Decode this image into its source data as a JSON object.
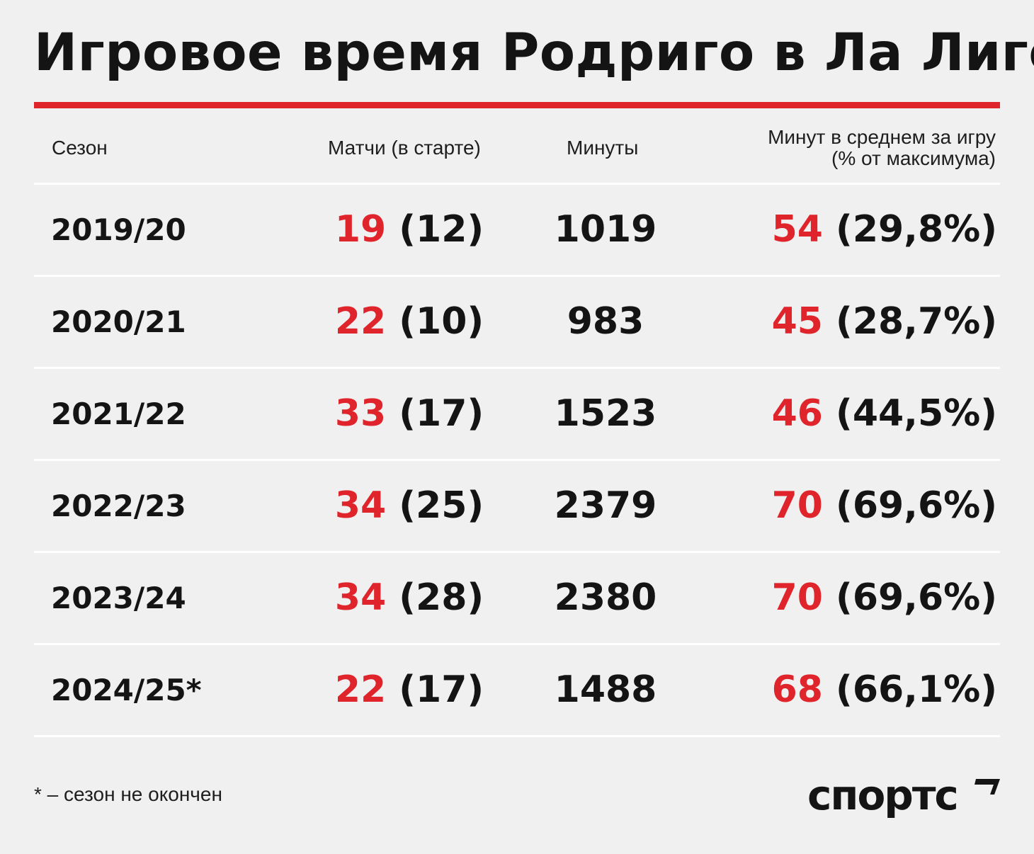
{
  "title": "Игровое время Родриго в Ла Лиге",
  "colors": {
    "accent": "#e0242b",
    "text": "#141414",
    "background": "#f0f0f0"
  },
  "headers": {
    "season": "Сезон",
    "matches": "Матчи (в старте)",
    "minutes": "Минуты",
    "avg_line1": "Минут в среднем за игру",
    "avg_line2": "(% от максимума)"
  },
  "footnote": "* – сезон не окончен",
  "logo": {
    "text": "спортс",
    "icon": "sports-ru-logo-mark"
  },
  "chart_data": {
    "type": "table",
    "title": "Игровое время Родриго в Ла Лиге",
    "columns": [
      "Сезон",
      "Матчи (в старте)",
      "Минуты",
      "Минут в среднем за игру (% от максимума)"
    ],
    "rows": [
      {
        "season": "2019/20",
        "matches": "19",
        "starts": "(12)",
        "minutes": "1019",
        "avg": "54",
        "pct": "(29,8%)"
      },
      {
        "season": "2020/21",
        "matches": "22",
        "starts": "(10)",
        "minutes": "983",
        "avg": "45",
        "pct": "(28,7%)"
      },
      {
        "season": "2021/22",
        "matches": "33",
        "starts": "(17)",
        "minutes": "1523",
        "avg": "46",
        "pct": "(44,5%)"
      },
      {
        "season": "2022/23",
        "matches": "34",
        "starts": "(25)",
        "minutes": "2379",
        "avg": "70",
        "pct": "(69,6%)"
      },
      {
        "season": "2023/24",
        "matches": "34",
        "starts": "(28)",
        "minutes": "2380",
        "avg": "70",
        "pct": "(69,6%)"
      },
      {
        "season": "2024/25*",
        "matches": "22",
        "starts": "(17)",
        "minutes": "1488",
        "avg": "68",
        "pct": "(66,1%)"
      }
    ]
  }
}
